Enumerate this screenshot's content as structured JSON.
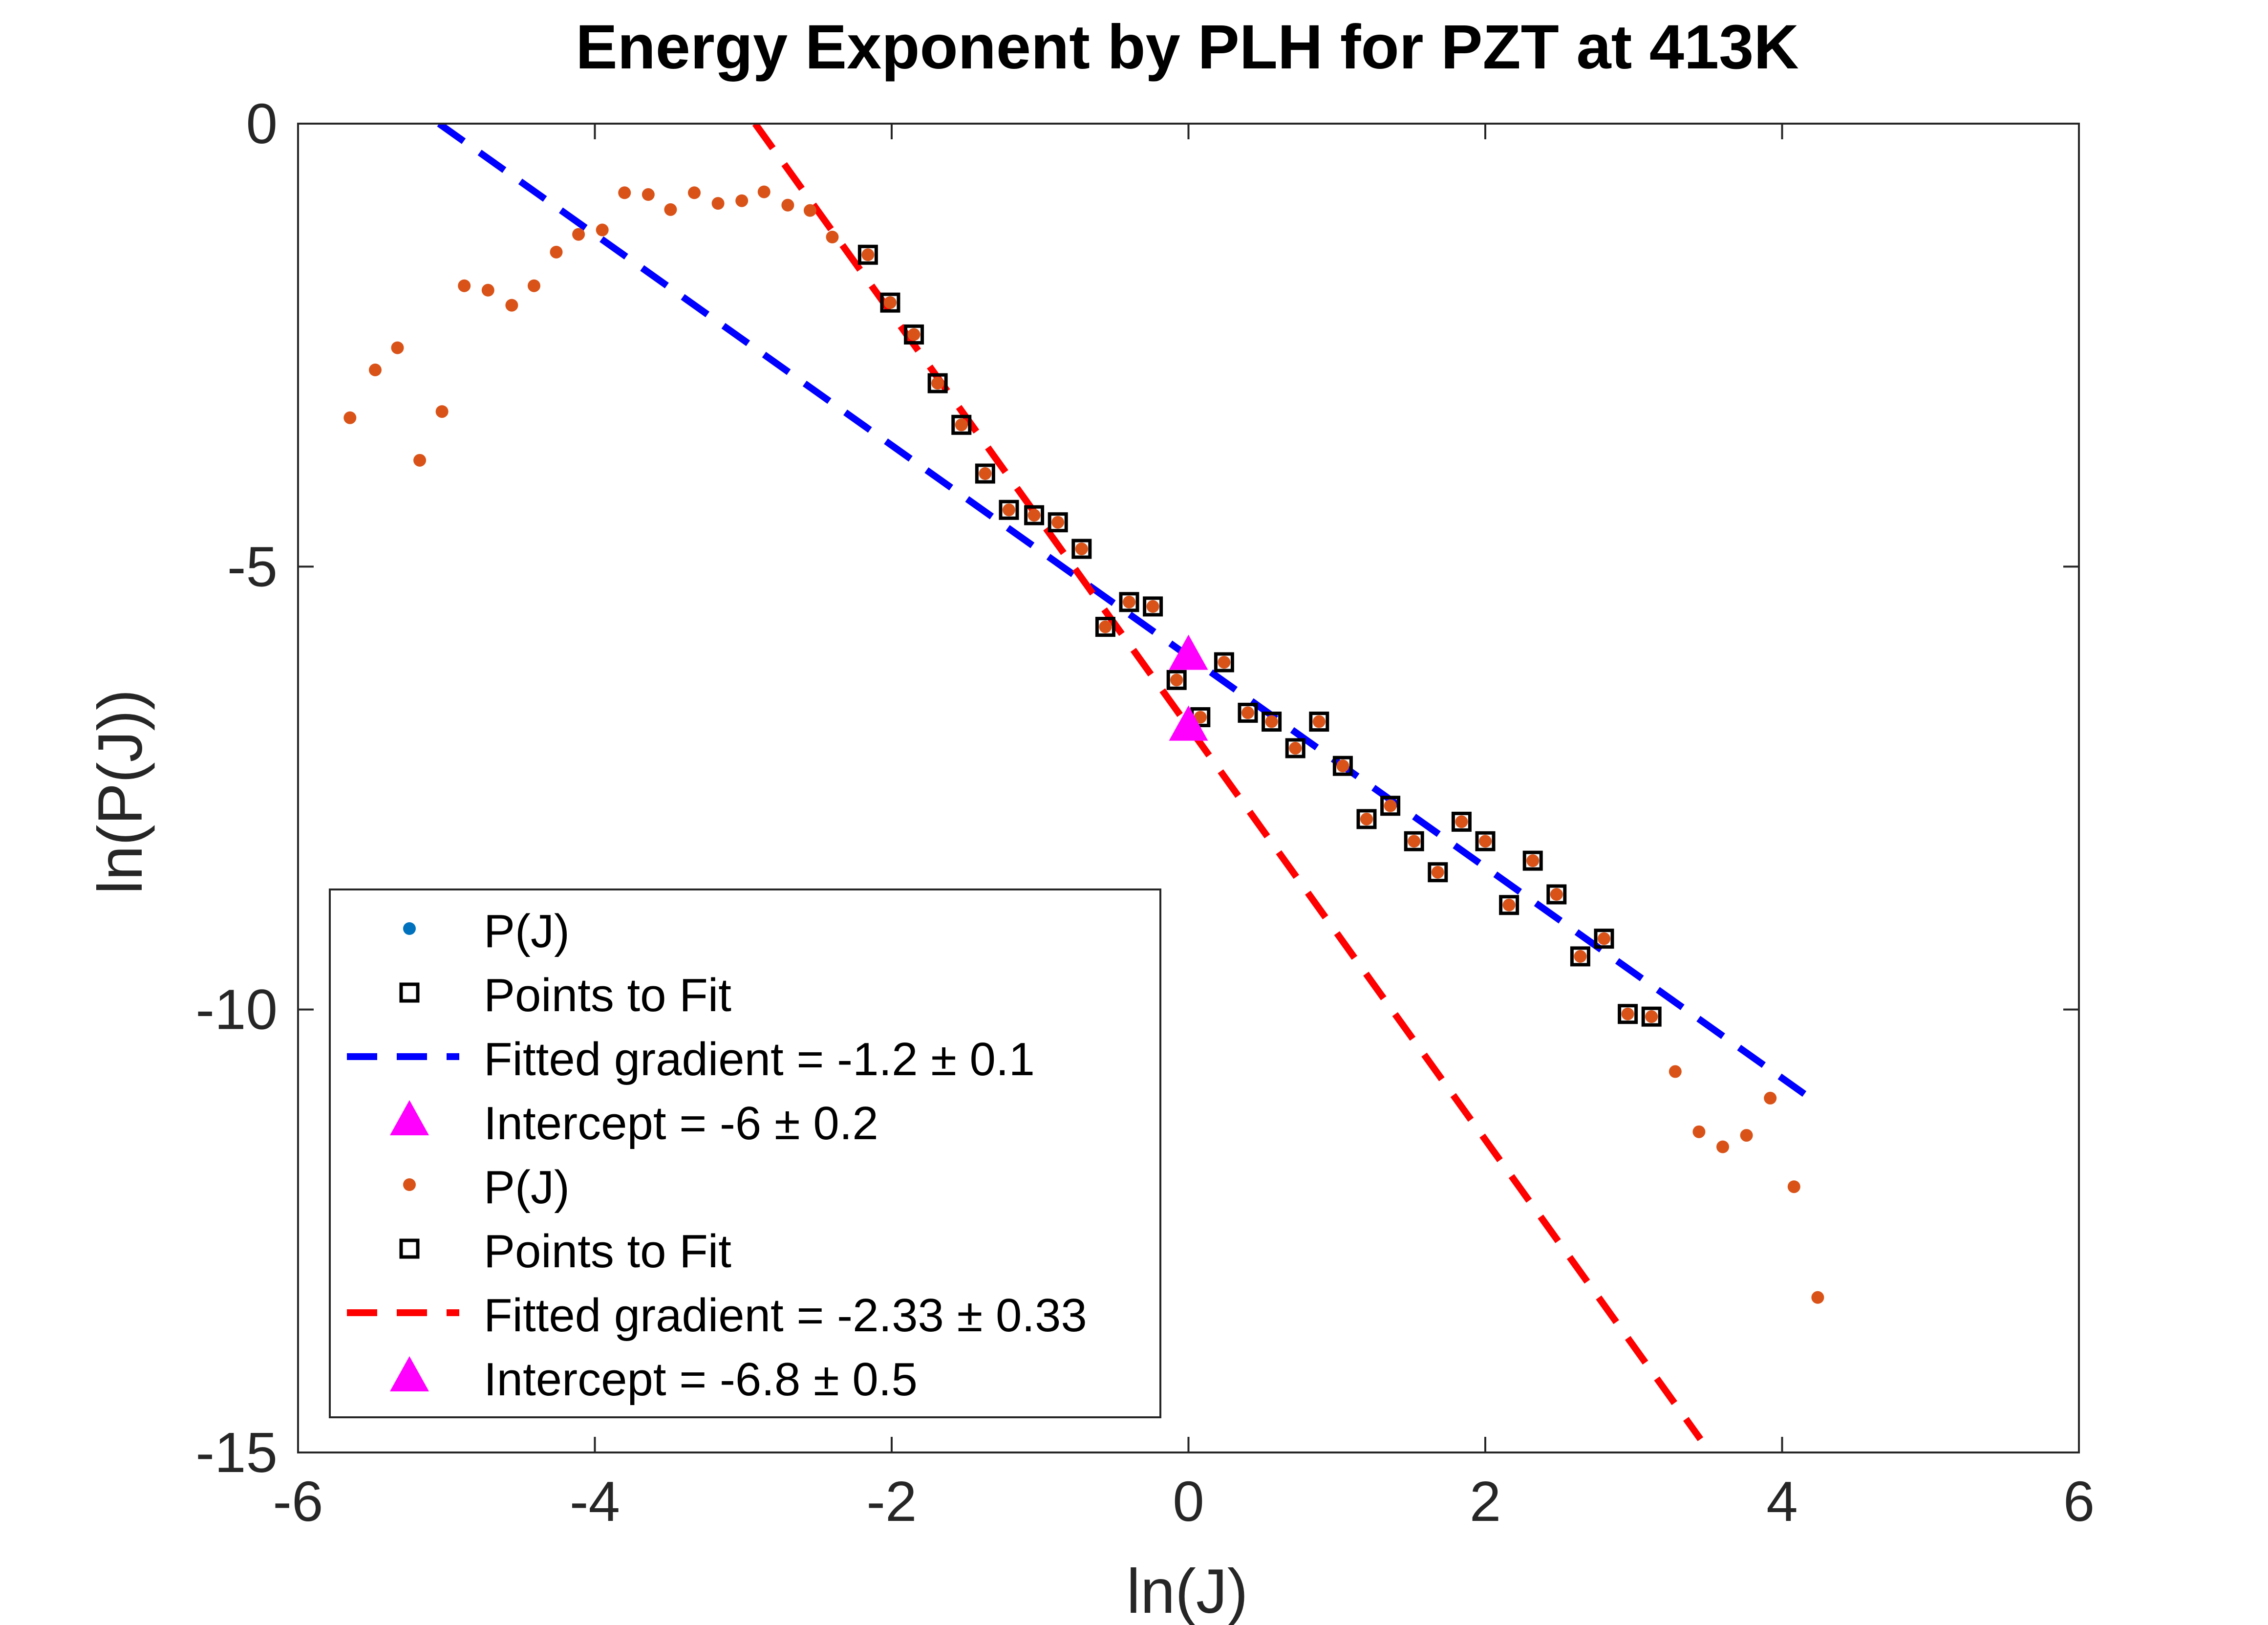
{
  "chart_data": {
    "type": "scatter",
    "title": "Energy Exponent by PLH for PZT at 413K",
    "xlabel": "ln(J)",
    "ylabel": "ln(P(J))",
    "xlim": [
      -6,
      6
    ],
    "ylim": [
      -15,
      0
    ],
    "xticks": [
      -6,
      -4,
      -2,
      0,
      2,
      4,
      6
    ],
    "yticks": [
      0,
      -5,
      -10,
      -15
    ],
    "xtick_labels": [
      "-6",
      "-4",
      "-2",
      "0",
      "2",
      "4",
      "6"
    ],
    "ytick_labels": [
      "0",
      "-5",
      "-10",
      "-15"
    ],
    "grid": false,
    "legend_position": "bottom-left",
    "colors": {
      "pj_blue": "#0072BD",
      "pj_orange": "#D95319",
      "fit_blue": "#0000FF",
      "fit_red": "#FF0000",
      "intercept": "#FF00FF",
      "square": "#000000"
    },
    "legend": [
      {
        "label": "P(J)",
        "marker": "dot",
        "color": "#0072BD"
      },
      {
        "label": "Points to Fit",
        "marker": "square",
        "color": "#000000"
      },
      {
        "label": "Fitted gradient = -1.2 ± 0.1",
        "marker": "dash",
        "color": "#0000FF"
      },
      {
        "label": "Intercept = -6 ± 0.2",
        "marker": "triangle",
        "color": "#FF00FF"
      },
      {
        "label": "P(J)",
        "marker": "dot",
        "color": "#D95319"
      },
      {
        "label": "Points to Fit",
        "marker": "square",
        "color": "#000000"
      },
      {
        "label": "Fitted gradient = -2.33 ± 0.33",
        "marker": "dash",
        "color": "#FF0000"
      },
      {
        "label": "Intercept = -6.8 ± 0.5",
        "marker": "triangle",
        "color": "#FF00FF"
      }
    ],
    "series": [
      {
        "name": "P(J)",
        "kind": "dots",
        "color": "#D95319",
        "points": [
          [
            -5.65,
            -3.32
          ],
          [
            -5.48,
            -2.78
          ],
          [
            -5.33,
            -2.53
          ],
          [
            -5.18,
            -3.8
          ],
          [
            -5.03,
            -3.25
          ],
          [
            -4.88,
            -1.83
          ],
          [
            -4.72,
            -1.88
          ],
          [
            -4.56,
            -2.05
          ],
          [
            -4.41,
            -1.83
          ],
          [
            -4.26,
            -1.45
          ],
          [
            -4.11,
            -1.25
          ],
          [
            -3.95,
            -1.2
          ],
          [
            -3.8,
            -0.78
          ],
          [
            -3.64,
            -0.8
          ],
          [
            -3.49,
            -0.97
          ],
          [
            -3.33,
            -0.78
          ],
          [
            -3.17,
            -0.9
          ],
          [
            -3.01,
            -0.87
          ],
          [
            -2.86,
            -0.77
          ],
          [
            -2.7,
            -0.92
          ],
          [
            -2.55,
            -0.98
          ],
          [
            -2.4,
            -1.28
          ],
          [
            -2.16,
            -1.48
          ],
          [
            -2.01,
            -2.02
          ],
          [
            -1.85,
            -2.38
          ],
          [
            -1.69,
            -2.93
          ],
          [
            -1.53,
            -3.4
          ],
          [
            -1.37,
            -3.95
          ],
          [
            -1.21,
            -4.36
          ],
          [
            -1.04,
            -4.42
          ],
          [
            -0.88,
            -4.5
          ],
          [
            -0.72,
            -4.8
          ],
          [
            -0.56,
            -5.68
          ],
          [
            -0.4,
            -5.4
          ],
          [
            -0.24,
            -5.45
          ],
          [
            -0.08,
            -6.28
          ],
          [
            0.08,
            -6.7
          ],
          [
            0.24,
            -6.08
          ],
          [
            0.4,
            -6.65
          ],
          [
            0.56,
            -6.75
          ],
          [
            0.72,
            -7.05
          ],
          [
            0.88,
            -6.75
          ],
          [
            1.04,
            -7.25
          ],
          [
            1.2,
            -7.85
          ],
          [
            1.36,
            -7.7
          ],
          [
            1.52,
            -8.1
          ],
          [
            1.68,
            -8.45
          ],
          [
            1.84,
            -7.88
          ],
          [
            2.0,
            -8.1
          ],
          [
            2.16,
            -8.82
          ],
          [
            2.32,
            -8.32
          ],
          [
            2.48,
            -8.7
          ],
          [
            2.64,
            -9.4
          ],
          [
            2.8,
            -9.2
          ],
          [
            2.96,
            -10.05
          ],
          [
            3.12,
            -10.08
          ],
          [
            3.28,
            -10.7
          ],
          [
            3.44,
            -11.38
          ],
          [
            3.6,
            -11.55
          ],
          [
            3.76,
            -11.42
          ],
          [
            3.92,
            -11.0
          ],
          [
            4.08,
            -12.0
          ],
          [
            4.24,
            -13.25
          ]
        ]
      },
      {
        "name": "Points to Fit",
        "kind": "squares",
        "color": "#000000",
        "points": [
          [
            -2.16,
            -1.48
          ],
          [
            -2.01,
            -2.02
          ],
          [
            -1.85,
            -2.38
          ],
          [
            -1.69,
            -2.93
          ],
          [
            -1.53,
            -3.4
          ],
          [
            -1.37,
            -3.95
          ],
          [
            -1.21,
            -4.36
          ],
          [
            -1.04,
            -4.42
          ],
          [
            -0.88,
            -4.5
          ],
          [
            -0.72,
            -4.8
          ],
          [
            -0.56,
            -5.68
          ],
          [
            -0.4,
            -5.4
          ],
          [
            -0.24,
            -5.45
          ],
          [
            -0.08,
            -6.28
          ],
          [
            0.08,
            -6.7
          ],
          [
            0.24,
            -6.08
          ],
          [
            0.4,
            -6.65
          ],
          [
            0.56,
            -6.75
          ],
          [
            0.72,
            -7.05
          ],
          [
            0.88,
            -6.75
          ],
          [
            1.04,
            -7.25
          ],
          [
            1.2,
            -7.85
          ],
          [
            1.36,
            -7.7
          ],
          [
            1.52,
            -8.1
          ],
          [
            1.68,
            -8.45
          ],
          [
            1.84,
            -7.88
          ],
          [
            2.0,
            -8.1
          ],
          [
            2.16,
            -8.82
          ],
          [
            2.32,
            -8.32
          ],
          [
            2.48,
            -8.7
          ],
          [
            2.64,
            -9.4
          ],
          [
            2.8,
            -9.2
          ],
          [
            2.96,
            -10.05
          ],
          [
            3.12,
            -10.08
          ]
        ]
      },
      {
        "name": "Fitted gradient = -1.2 ± 0.1",
        "kind": "line",
        "color": "#0000FF",
        "points": [
          [
            -5.05,
            0.0
          ],
          [
            4.24,
            -11.06
          ]
        ]
      },
      {
        "name": "Fitted gradient = -2.33 ± 0.33",
        "kind": "line",
        "color": "#FF0000",
        "points": [
          [
            -2.92,
            0.0
          ],
          [
            3.45,
            -14.85
          ]
        ]
      },
      {
        "name": "Intercept = -6 ± 0.2",
        "kind": "triangle",
        "color": "#FF00FF",
        "points": [
          [
            0.0,
            -6.0
          ]
        ]
      },
      {
        "name": "Intercept = -6.8 ± 0.5",
        "kind": "triangle",
        "color": "#FF00FF",
        "points": [
          [
            0.0,
            -6.8
          ]
        ]
      }
    ]
  }
}
